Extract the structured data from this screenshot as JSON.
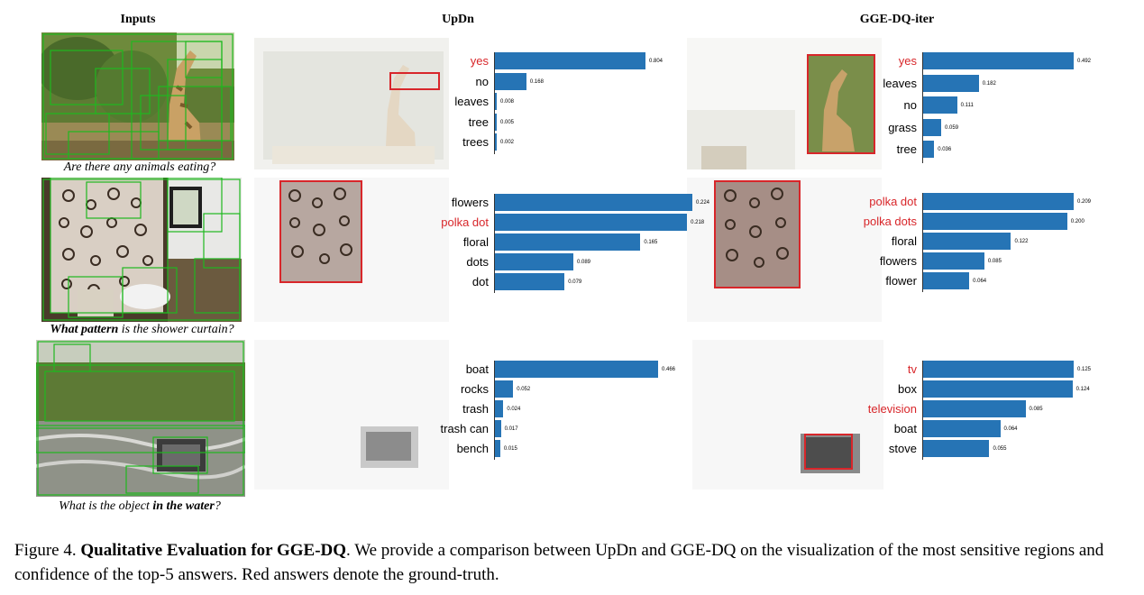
{
  "columns": {
    "inputs": "Inputs",
    "updn": "UpDn",
    "ggedq": "GGE-DQ-iter"
  },
  "colors": {
    "bar": "#2674b5",
    "ground_truth": "#d8262a",
    "answer": "#000000"
  },
  "rows": [
    {
      "question": {
        "pre": "Are there any animals eating?",
        "bold": "",
        "post": ""
      },
      "updn": [
        {
          "label": "yes",
          "value": 0.804,
          "value_label": "0.804",
          "gt": true
        },
        {
          "label": "no",
          "value": 0.168,
          "value_label": "0.168",
          "gt": false
        },
        {
          "label": "leaves",
          "value": 0.008,
          "value_label": "0.008",
          "gt": false
        },
        {
          "label": "tree",
          "value": 0.005,
          "value_label": "0.005",
          "gt": false
        },
        {
          "label": "trees",
          "value": 0.002,
          "value_label": "0.002",
          "gt": false
        }
      ],
      "ggedq": [
        {
          "label": "yes",
          "value": 0.492,
          "value_label": "0.492",
          "gt": true
        },
        {
          "label": "leaves",
          "value": 0.182,
          "value_label": "0.182",
          "gt": false
        },
        {
          "label": "no",
          "value": 0.111,
          "value_label": "0.111",
          "gt": false
        },
        {
          "label": "grass",
          "value": 0.059,
          "value_label": "0.059",
          "gt": false
        },
        {
          "label": "tree",
          "value": 0.036,
          "value_label": "0.036",
          "gt": false
        }
      ]
    },
    {
      "question": {
        "pre": "",
        "bold": "What pattern",
        "post": " is the shower curtain?"
      },
      "updn": [
        {
          "label": "flowers",
          "value": 0.224,
          "value_label": "0.224",
          "gt": false
        },
        {
          "label": "polka dot",
          "value": 0.218,
          "value_label": "0.218",
          "gt": true
        },
        {
          "label": "floral",
          "value": 0.165,
          "value_label": "0.165",
          "gt": false
        },
        {
          "label": "dots",
          "value": 0.089,
          "value_label": "0.089",
          "gt": false
        },
        {
          "label": "dot",
          "value": 0.079,
          "value_label": "0.079",
          "gt": false
        }
      ],
      "ggedq": [
        {
          "label": "polka dot",
          "value": 0.209,
          "value_label": "0.209",
          "gt": true
        },
        {
          "label": "polka dots",
          "value": 0.2,
          "value_label": "0.200",
          "gt": true
        },
        {
          "label": "floral",
          "value": 0.122,
          "value_label": "0.122",
          "gt": false
        },
        {
          "label": "flowers",
          "value": 0.085,
          "value_label": "0.085",
          "gt": false
        },
        {
          "label": "flower",
          "value": 0.064,
          "value_label": "0.064",
          "gt": false
        }
      ]
    },
    {
      "question": {
        "pre": "What is the object ",
        "bold": "in the water",
        "post": "?"
      },
      "updn": [
        {
          "label": "boat",
          "value": 0.466,
          "value_label": "0.466",
          "gt": false
        },
        {
          "label": "rocks",
          "value": 0.052,
          "value_label": "0.052",
          "gt": false
        },
        {
          "label": "trash",
          "value": 0.024,
          "value_label": "0.024",
          "gt": false
        },
        {
          "label": "trash can",
          "value": 0.017,
          "value_label": "0.017",
          "gt": false
        },
        {
          "label": "bench",
          "value": 0.015,
          "value_label": "0.015",
          "gt": false
        }
      ],
      "ggedq": [
        {
          "label": "tv",
          "value": 0.125,
          "value_label": "0.125",
          "gt": true
        },
        {
          "label": "box",
          "value": 0.124,
          "value_label": "0.124",
          "gt": false
        },
        {
          "label": "television",
          "value": 0.085,
          "value_label": "0.085",
          "gt": true
        },
        {
          "label": "boat",
          "value": 0.064,
          "value_label": "0.064",
          "gt": false
        },
        {
          "label": "stove",
          "value": 0.055,
          "value_label": "0.055",
          "gt": false
        }
      ]
    }
  ],
  "caption": {
    "prefix": "Figure 4. ",
    "bold": "Qualitative Evaluation for GGE-DQ",
    "text": ". We provide a comparison between UpDn and GGE-DQ on the visualization of the most sensitive regions and confidence of the top-5 answers. Red answers denote the ground-truth."
  },
  "chart_data": [
    {
      "type": "bar",
      "title": "",
      "categories": [
        "yes",
        "no",
        "leaves",
        "tree",
        "trees"
      ],
      "values": [
        0.804,
        0.168,
        0.008,
        0.005,
        0.002
      ]
    },
    {
      "type": "bar",
      "title": "",
      "categories": [
        "yes",
        "leaves",
        "no",
        "grass",
        "tree"
      ],
      "values": [
        0.492,
        0.182,
        0.111,
        0.059,
        0.036
      ]
    },
    {
      "type": "bar",
      "title": "",
      "categories": [
        "flowers",
        "polka dot",
        "floral",
        "dots",
        "dot"
      ],
      "values": [
        0.224,
        0.218,
        0.165,
        0.089,
        0.079
      ]
    },
    {
      "type": "bar",
      "title": "",
      "categories": [
        "polka dot",
        "polka dots",
        "floral",
        "flowers",
        "flower"
      ],
      "values": [
        0.209,
        0.2,
        0.122,
        0.085,
        0.064
      ]
    },
    {
      "type": "bar",
      "title": "",
      "categories": [
        "boat",
        "rocks",
        "trash",
        "trash can",
        "bench"
      ],
      "values": [
        0.466,
        0.052,
        0.024,
        0.017,
        0.015
      ]
    },
    {
      "type": "bar",
      "title": "",
      "categories": [
        "tv",
        "box",
        "television",
        "boat",
        "stove"
      ],
      "values": [
        0.125,
        0.124,
        0.085,
        0.064,
        0.055
      ]
    }
  ]
}
